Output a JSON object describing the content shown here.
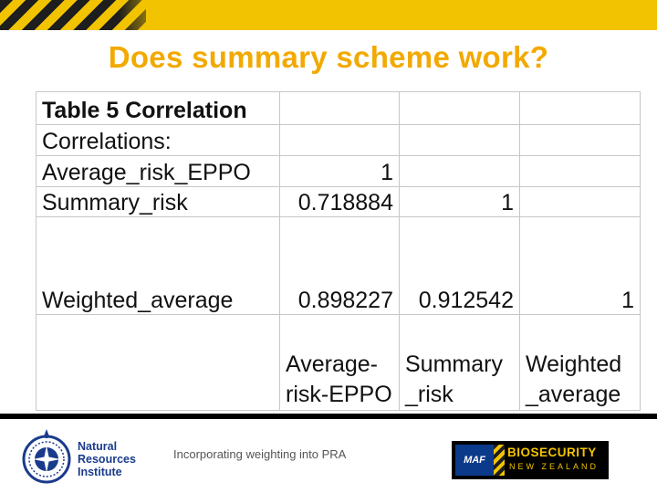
{
  "slide": {
    "title": "Does summary scheme work?",
    "footer_caption": "Incorporating weighting into PRA"
  },
  "table": {
    "title": "Table 5 Correlation",
    "subtitle": "Correlations:",
    "rows": [
      {
        "label": "Average_risk_EPPO",
        "c1": "1",
        "c2": "",
        "c3": ""
      },
      {
        "label": "Summary_risk",
        "c1": "0.718884",
        "c2": "1",
        "c3": ""
      },
      {
        "label": "Weighted_average",
        "c1": "0.898227",
        "c2": "0.912542",
        "c3": "1"
      }
    ],
    "col_headers": {
      "c1": "Average-risk-EPPO",
      "c2": "Summary _risk",
      "c3": "Weighted _average"
    }
  },
  "logos": {
    "nri_line1": "Natural",
    "nri_line2": "Resources",
    "nri_line3": "Institute",
    "maf": "MAF",
    "biosecurity_name": "BIOSECURITY",
    "biosecurity_sub": "NEW ZEALAND"
  },
  "colors": {
    "accent_yellow": "#f2c300",
    "title_orange": "#f2a900",
    "nri_blue": "#1a3b8c",
    "maf_blue": "#0b3a8a"
  }
}
